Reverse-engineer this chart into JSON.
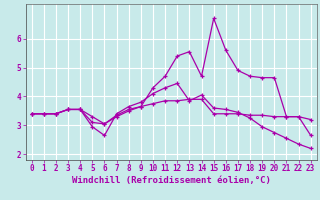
{
  "background_color": "#c8eaea",
  "plot_bg_color": "#c8eaea",
  "line_color": "#aa00aa",
  "grid_color": "#ffffff",
  "xlabel": "Windchill (Refroidissement éolien,°C)",
  "x": [
    0,
    1,
    2,
    3,
    4,
    5,
    6,
    7,
    8,
    9,
    10,
    11,
    12,
    13,
    14,
    15,
    16,
    17,
    18,
    19,
    20,
    21,
    22,
    23
  ],
  "line1": [
    3.4,
    3.4,
    3.4,
    3.55,
    3.55,
    3.3,
    3.05,
    3.35,
    3.55,
    3.65,
    3.75,
    3.85,
    3.85,
    3.9,
    3.9,
    3.4,
    3.4,
    3.4,
    3.35,
    3.35,
    3.3,
    3.3,
    3.3,
    3.2
  ],
  "line2": [
    3.4,
    3.4,
    3.4,
    3.55,
    3.55,
    3.1,
    3.05,
    3.3,
    3.5,
    3.65,
    4.3,
    4.7,
    5.4,
    5.55,
    4.7,
    6.7,
    5.6,
    4.9,
    4.7,
    4.65,
    4.65,
    3.3,
    3.3,
    2.65
  ],
  "line3": [
    3.4,
    3.4,
    3.4,
    3.55,
    3.55,
    2.95,
    2.65,
    3.4,
    3.65,
    3.8,
    4.1,
    4.3,
    4.45,
    3.85,
    4.05,
    3.6,
    3.55,
    3.45,
    3.25,
    2.95,
    2.75,
    2.55,
    2.35,
    2.2
  ],
  "ylim": [
    1.8,
    7.2
  ],
  "xlim": [
    -0.5,
    23.5
  ],
  "yticks": [
    2,
    3,
    4,
    5,
    6
  ],
  "xticks": [
    0,
    1,
    2,
    3,
    4,
    5,
    6,
    7,
    8,
    9,
    10,
    11,
    12,
    13,
    14,
    15,
    16,
    17,
    18,
    19,
    20,
    21,
    22,
    23
  ],
  "tick_label_fontsize": 5.5,
  "xlabel_fontsize": 6.5
}
